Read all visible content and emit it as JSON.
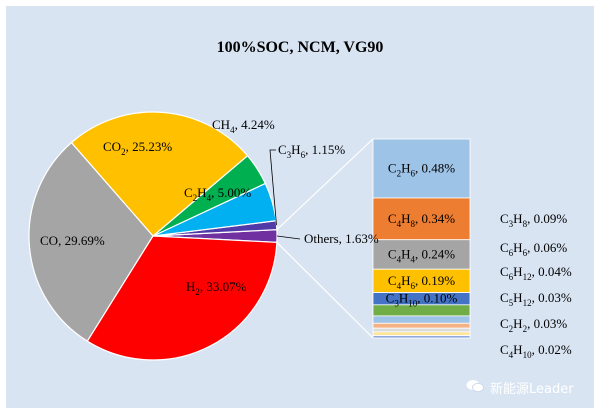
{
  "chart_data": {
    "type": "pie",
    "title": "100%SOC, NCM, VG90",
    "slices": [
      {
        "base": "H",
        "sub": "2",
        "label": "H₂",
        "value": 33.07,
        "text": "33.07%",
        "color": "#ff0000"
      },
      {
        "base": "CO",
        "sub": "",
        "label": "CO",
        "value": 29.69,
        "text": "29.69%",
        "color": "#a5a5a5"
      },
      {
        "base": "CO",
        "sub": "2",
        "label": "CO₂",
        "value": 25.23,
        "text": "25.23%",
        "color": "#ffc000"
      },
      {
        "base": "CH",
        "sub": "4",
        "label": "CH₄",
        "value": 4.24,
        "text": "4.24%",
        "color": "#00b050"
      },
      {
        "base": "C",
        "sub": "2",
        "base2": "H",
        "sub2": "4",
        "label": "C₂H₄",
        "value": 5.0,
        "text": "5.00%",
        "color": "#00b0f0"
      },
      {
        "base": "C",
        "sub": "3",
        "base2": "H",
        "sub2": "6",
        "label": "C₃H₆",
        "value": 1.15,
        "text": "1.15%",
        "color": "#4f3aa8"
      },
      {
        "base": "Others",
        "sub": "",
        "label": "Others",
        "value": 1.63,
        "text": "1.63%",
        "color": "#7030a0"
      }
    ],
    "others_breakdown": [
      {
        "base": "C",
        "sub": "2",
        "base2": "H",
        "sub2": "6",
        "label": "C₂H₆",
        "value": 0.48,
        "text": "0.48%",
        "color": "#9dc3e6"
      },
      {
        "base": "C",
        "sub": "4",
        "base2": "H",
        "sub2": "8",
        "label": "C₄H₈",
        "value": 0.34,
        "text": "0.34%",
        "color": "#ed7d31"
      },
      {
        "base": "C",
        "sub": "4",
        "base2": "H",
        "sub2": "4",
        "label": "C₄H₄",
        "value": 0.24,
        "text": "0.24%",
        "color": "#a5a5a5"
      },
      {
        "base": "C",
        "sub": "4",
        "base2": "H",
        "sub2": "6",
        "label": "C₄H₆",
        "value": 0.19,
        "text": "0.19%",
        "color": "#ffc000"
      },
      {
        "base": "C",
        "sub": "3",
        "base2": "H",
        "sub2": "10",
        "label": "C₃H₁₀",
        "value": 0.1,
        "text": "0.10%",
        "color": "#4472c4"
      },
      {
        "base": "C",
        "sub": "3",
        "base2": "H",
        "sub2": "8",
        "label": "C₃H₈",
        "value": 0.09,
        "text": "0.09%",
        "color": "#70ad47"
      },
      {
        "base": "C",
        "sub": "6",
        "base2": "H",
        "sub2": "6",
        "label": "C₆H₆",
        "value": 0.06,
        "text": "0.06%",
        "color": "#9dc3e6"
      },
      {
        "base": "C",
        "sub": "6",
        "base2": "H",
        "sub2": "12",
        "label": "C₆H₁₂",
        "value": 0.04,
        "text": "0.04%",
        "color": "#f4b183"
      },
      {
        "base": "C",
        "sub": "5",
        "base2": "H",
        "sub2": "12",
        "label": "C₅H₁₂",
        "value": 0.03,
        "text": "0.03%",
        "color": "#dbdbdb"
      },
      {
        "base": "C",
        "sub": "2",
        "base2": "H",
        "sub2": "2",
        "label": "C₂H₂",
        "value": 0.03,
        "text": "0.03%",
        "color": "#ffe699"
      },
      {
        "base": "C",
        "sub": "4",
        "base2": "H",
        "sub2": "10",
        "label": "C₄H₁₀",
        "value": 0.02,
        "text": "0.02%",
        "color": "#8faadc"
      }
    ]
  },
  "watermark": "新能源Leader"
}
